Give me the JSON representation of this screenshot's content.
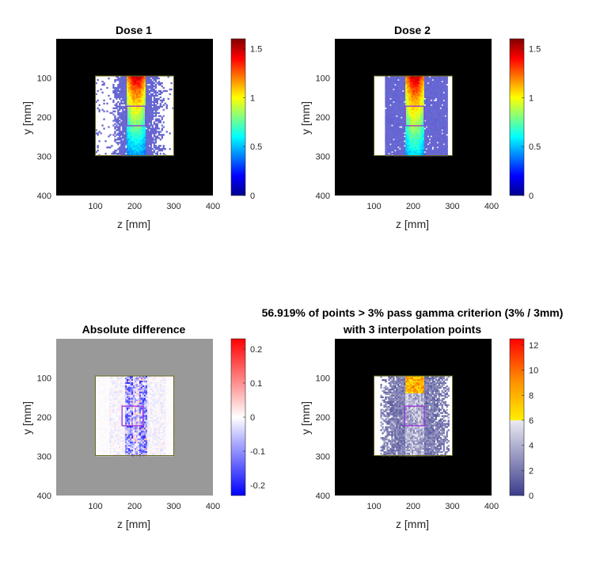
{
  "chart_data": [
    {
      "type": "heatmap",
      "title": "Dose 1",
      "xlabel": "z [mm]",
      "ylabel": "y [mm]",
      "xlim": [
        0,
        400
      ],
      "ylim": [
        0,
        400
      ],
      "y_reversed": true,
      "xticks": [
        "100",
        "200",
        "300",
        "400"
      ],
      "yticks": [
        "100",
        "200",
        "300",
        "400"
      ],
      "background": "#000000",
      "colormap": "jet",
      "clim": [
        0,
        1.6
      ],
      "colorbar_ticks": [
        "0",
        "0.5",
        "1",
        "1.5"
      ],
      "outer_roi": {
        "z": [
          100,
          300
        ],
        "y": [
          95,
          298
        ]
      },
      "inner_roi": {
        "z": [
          180,
          228
        ],
        "y": [
          172,
          222
        ]
      },
      "field_band": {
        "z": [
          140,
          275
        ]
      },
      "beam_core": {
        "z": [
          180,
          225
        ],
        "peak_value": 1.5,
        "distal_value": 0.45
      }
    },
    {
      "type": "heatmap",
      "title": "Dose 2",
      "xlabel": "z [mm]",
      "ylabel": "y [mm]",
      "xlim": [
        0,
        400
      ],
      "ylim": [
        0,
        400
      ],
      "y_reversed": true,
      "xticks": [
        "100",
        "200",
        "300",
        "400"
      ],
      "yticks": [
        "100",
        "200",
        "300",
        "400"
      ],
      "background": "#000000",
      "colormap": "jet",
      "clim": [
        0,
        1.6
      ],
      "colorbar_ticks": [
        "0",
        "0.5",
        "1",
        "1.5"
      ],
      "outer_roi": {
        "z": [
          100,
          300
        ],
        "y": [
          95,
          298
        ]
      },
      "inner_roi": {
        "z": [
          180,
          228
        ],
        "y": [
          172,
          222
        ]
      },
      "field_band": {
        "z": [
          125,
          285
        ]
      },
      "beam_core": {
        "z": [
          180,
          225
        ],
        "peak_value": 1.5,
        "distal_value": 0.55
      }
    },
    {
      "type": "heatmap",
      "title": "Absolute difference",
      "xlabel": "z [mm]",
      "ylabel": "y [mm]",
      "xlim": [
        0,
        400
      ],
      "ylim": [
        0,
        400
      ],
      "y_reversed": true,
      "xticks": [
        "100",
        "200",
        "300",
        "400"
      ],
      "yticks": [
        "100",
        "200",
        "300",
        "400"
      ],
      "background": "#999999",
      "colormap": "blue-white-red",
      "clim": [
        -0.23,
        0.23
      ],
      "colorbar_ticks": [
        "-0.2",
        "-0.1",
        "0",
        "0.1",
        "0.2"
      ],
      "outer_roi": {
        "z": [
          100,
          300
        ],
        "y": [
          95,
          298
        ]
      },
      "inner_roi": {
        "z": [
          168,
          222
        ],
        "y": [
          172,
          222
        ]
      }
    },
    {
      "type": "heatmap",
      "title": "56.919% of points > 3% pass gamma criterion (3% / 3mm)",
      "subtitle": "with 3 interpolation points",
      "xlabel": "z [mm]",
      "ylabel": "y [mm]",
      "xlim": [
        0,
        400
      ],
      "ylim": [
        0,
        400
      ],
      "y_reversed": true,
      "xticks": [
        "100",
        "200",
        "300",
        "400"
      ],
      "yticks": [
        "100",
        "200",
        "300",
        "400"
      ],
      "background": "#000000",
      "colormap": "gamma",
      "clim": [
        0,
        12.5
      ],
      "threshold": 6,
      "colorbar_ticks": [
        "0",
        "2",
        "4",
        "6",
        "8",
        "10",
        "12"
      ],
      "outer_roi": {
        "z": [
          100,
          300
        ],
        "y": [
          95,
          298
        ]
      },
      "inner_roi": {
        "z": [
          178,
          228
        ],
        "y": [
          172,
          222
        ]
      }
    }
  ]
}
